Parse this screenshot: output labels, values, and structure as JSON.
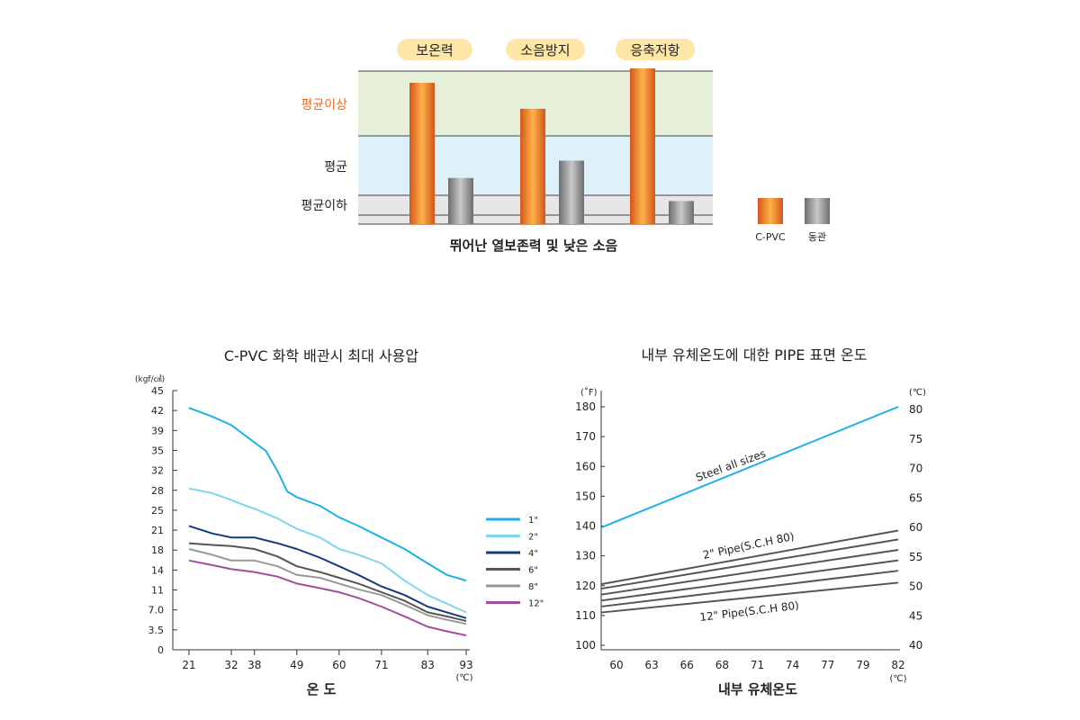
{
  "chart_data": [
    {
      "type": "bar",
      "categories": [
        "보온력",
        "소음방지",
        "응축저항"
      ],
      "series": [
        {
          "name": "C-PVC",
          "values": [
            2.45,
            2.0,
            2.7
          ]
        },
        {
          "name": "동관",
          "values": [
            0.8,
            1.1,
            0.4
          ]
        }
      ],
      "levels": [
        "평균이상",
        "평균",
        "평균이하"
      ],
      "ylim": [
        0,
        2.7
      ],
      "xlabel": "뛰어난 열보존력 및 낮은 소음",
      "legend_position": "right",
      "colors": {
        "cpvc": "#F08A24",
        "copper": "#8C8C8C",
        "above": "#E6F0D8",
        "avg": "#DCF1F9",
        "below": "#E6E6E8",
        "label_above": "#F06A22"
      }
    },
    {
      "type": "line",
      "title": "C-PVC 화학 배관시 최대 사용압",
      "ylabel": "(kgf/㎠)",
      "xlabel": "온 도",
      "xunit": "(℃)",
      "x_ticks": [
        "21",
        "32",
        "38",
        "49",
        "60",
        "71",
        "83",
        "93"
      ],
      "y_ticks": [
        "0",
        "3.5",
        "7.0",
        "11",
        "14",
        "18",
        "21",
        "25",
        "28",
        "32",
        "35",
        "39",
        "42",
        "45"
      ],
      "ylim": [
        0,
        45
      ],
      "legend_position": "right",
      "series": [
        {
          "name": "1\"",
          "color": "#1DB0E6",
          "points": [
            [
              21,
              42
            ],
            [
              27,
              40.5
            ],
            [
              32,
              39
            ],
            [
              35,
              37.5
            ],
            [
              38,
              36
            ],
            [
              41,
              34.5
            ],
            [
              44,
              31
            ],
            [
              46.5,
              27.5
            ],
            [
              49,
              26.5
            ],
            [
              55,
              25
            ],
            [
              60,
              23
            ],
            [
              65,
              21.5
            ],
            [
              71,
              19.5
            ],
            [
              77,
              17.5
            ],
            [
              83,
              15
            ],
            [
              88,
              13
            ],
            [
              93,
              12
            ]
          ]
        },
        {
          "name": "2\"",
          "color": "#7FD5EF",
          "points": [
            [
              21,
              28
            ],
            [
              27,
              27.2
            ],
            [
              32,
              26
            ],
            [
              35,
              25.2
            ],
            [
              38,
              24.5
            ],
            [
              44,
              22.8
            ],
            [
              49,
              21
            ],
            [
              55,
              19.5
            ],
            [
              60,
              17.5
            ],
            [
              65,
              16.5
            ],
            [
              71,
              15
            ],
            [
              77,
              12
            ],
            [
              83,
              9.5
            ],
            [
              88,
              8
            ],
            [
              93,
              6.5
            ]
          ]
        },
        {
          "name": "4\"",
          "color": "#143A80",
          "points": [
            [
              21,
              21.5
            ],
            [
              27,
              20.2
            ],
            [
              32,
              19.5
            ],
            [
              38,
              19.5
            ],
            [
              44,
              18.5
            ],
            [
              49,
              17.5
            ],
            [
              55,
              16
            ],
            [
              60,
              14.5
            ],
            [
              65,
              13
            ],
            [
              71,
              11
            ],
            [
              77,
              9.5
            ],
            [
              83,
              7.5
            ],
            [
              88,
              6.5
            ],
            [
              93,
              5.5
            ]
          ]
        },
        {
          "name": "6\"",
          "color": "#555555",
          "points": [
            [
              21,
              18.5
            ],
            [
              27,
              18.2
            ],
            [
              32,
              18
            ],
            [
              38,
              17.5
            ],
            [
              44,
              16.2
            ],
            [
              49,
              14.5
            ],
            [
              55,
              13.5
            ],
            [
              60,
              12.5
            ],
            [
              65,
              11.5
            ],
            [
              71,
              10
            ],
            [
              77,
              8.5
            ],
            [
              83,
              6.5
            ],
            [
              88,
              5.8
            ],
            [
              93,
              5
            ]
          ]
        },
        {
          "name": "8\"",
          "color": "#999999",
          "points": [
            [
              21,
              17.5
            ],
            [
              27,
              16.5
            ],
            [
              32,
              15.5
            ],
            [
              38,
              15.5
            ],
            [
              44,
              14.5
            ],
            [
              49,
              13
            ],
            [
              55,
              12.5
            ],
            [
              60,
              11.5
            ],
            [
              65,
              10.5
            ],
            [
              71,
              9.5
            ],
            [
              77,
              7.8
            ],
            [
              83,
              6
            ],
            [
              88,
              5.2
            ],
            [
              93,
              4.5
            ]
          ]
        },
        {
          "name": "12\"",
          "color": "#A04E9D",
          "points": [
            [
              21,
              15.5
            ],
            [
              27,
              14.7
            ],
            [
              32,
              14
            ],
            [
              38,
              13.5
            ],
            [
              44,
              12.7
            ],
            [
              49,
              11.5
            ],
            [
              55,
              10.7
            ],
            [
              60,
              10
            ],
            [
              65,
              9
            ],
            [
              71,
              7.5
            ],
            [
              77,
              5.8
            ],
            [
              83,
              4
            ],
            [
              88,
              3.2
            ],
            [
              93,
              2.5
            ]
          ]
        }
      ]
    },
    {
      "type": "line",
      "title": "내부 유체온도에 대한 PIPE 표면 온도",
      "ylabel_left": "(˚F)",
      "ylabel_right": "(℃)",
      "xlabel": "내부 유체온도",
      "xunit": "(℃)",
      "x_ticks": [
        "60",
        "63",
        "66",
        "68",
        "71",
        "74",
        "77",
        "79",
        "82"
      ],
      "y_ticks_left": [
        "100",
        "110",
        "120",
        "130",
        "140",
        "150",
        "160",
        "170",
        "180"
      ],
      "y_ticks_right": [
        "40",
        "45",
        "50",
        "55",
        "60",
        "65",
        "70",
        "75",
        "80"
      ],
      "xlim": [
        58.5,
        82
      ],
      "ylim_left": [
        100,
        183
      ],
      "series": [
        {
          "name": "Steel all sizes",
          "color": "#1DB0E6",
          "points": [
            [
              58.5,
              139.5
            ],
            [
              82,
              180
            ]
          ]
        },
        {
          "name": "2\" Pipe(S.C.H 80)",
          "color": "#555555",
          "points": [
            [
              58.5,
              120.5
            ],
            [
              82,
              138.5
            ]
          ]
        },
        {
          "name": "",
          "color": "#555555",
          "points": [
            [
              58.5,
              119
            ],
            [
              82,
              135.5
            ]
          ]
        },
        {
          "name": "",
          "color": "#555555",
          "points": [
            [
              58.5,
              117
            ],
            [
              82,
              132
            ]
          ]
        },
        {
          "name": "",
          "color": "#555555",
          "points": [
            [
              58.5,
              115
            ],
            [
              82,
              128.5
            ]
          ]
        },
        {
          "name": "",
          "color": "#555555",
          "points": [
            [
              58.5,
              113
            ],
            [
              82,
              125
            ]
          ]
        },
        {
          "name": "12\" Pipe(S.C.H 80)",
          "color": "#555555",
          "points": [
            [
              58.5,
              111
            ],
            [
              82,
              121
            ]
          ]
        }
      ]
    }
  ]
}
